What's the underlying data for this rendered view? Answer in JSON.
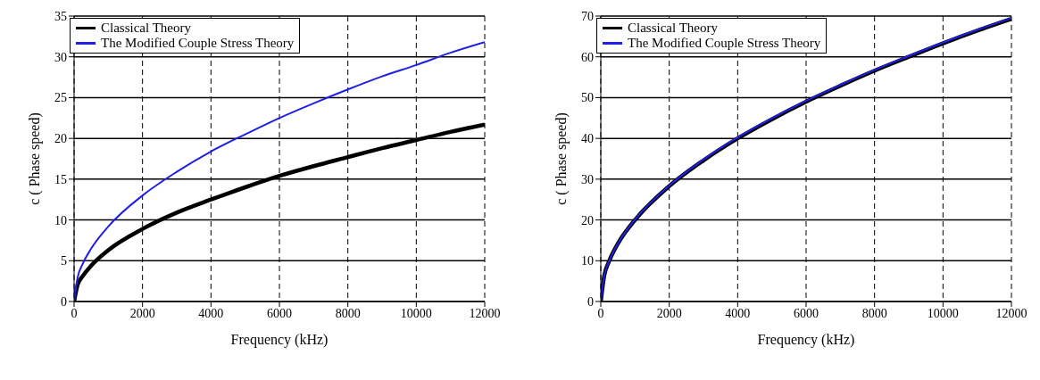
{
  "chart_data": [
    {
      "type": "line",
      "xlabel": "Frequency (kHz)",
      "ylabel": "c ( Phase speed)",
      "x": [
        0,
        100,
        250,
        500,
        1000,
        2000,
        3000,
        4000,
        5000,
        6000,
        7000,
        8000,
        9000,
        10000,
        11000,
        12000
      ],
      "xlim": [
        0,
        12000
      ],
      "xticks": [
        0,
        2000,
        4000,
        6000,
        8000,
        10000,
        12000
      ],
      "ylim": [
        0,
        35
      ],
      "yticks": [
        0,
        5,
        10,
        15,
        20,
        25,
        30,
        35
      ],
      "grid": true,
      "legend": "top left",
      "marker": "none",
      "line_style": "solid",
      "series": [
        {
          "name": "Classical Theory",
          "color": "#000000",
          "values": [
            0,
            2.0,
            3.1,
            4.4,
            6.3,
            8.9,
            10.9,
            12.5,
            14.0,
            15.4,
            16.6,
            17.7,
            18.8,
            19.8,
            20.8,
            21.7
          ]
        },
        {
          "name": "The Modified Couple Stress Theory",
          "color": "#1f1fe6",
          "values": [
            0,
            2.9,
            4.6,
            6.5,
            9.2,
            13.0,
            15.9,
            18.4,
            20.5,
            22.5,
            24.3,
            26.0,
            27.6,
            29.0,
            30.5,
            31.8
          ]
        }
      ]
    },
    {
      "type": "line",
      "xlabel": "Frequency (kHz)",
      "ylabel": "c ( Phase speed)",
      "x": [
        0,
        100,
        250,
        500,
        1000,
        2000,
        3000,
        4000,
        5000,
        6000,
        7000,
        8000,
        9000,
        10000,
        11000,
        12000
      ],
      "xlim": [
        0,
        12000
      ],
      "xticks": [
        0,
        2000,
        4000,
        6000,
        8000,
        10000,
        12000
      ],
      "ylim": [
        0,
        70
      ],
      "yticks": [
        0,
        10,
        20,
        30,
        40,
        50,
        60,
        70
      ],
      "grid": true,
      "legend": "top left",
      "marker": "none",
      "line_style": "solid",
      "series": [
        {
          "name": "Classical Theory",
          "color": "#000000",
          "values": [
            0,
            6.3,
            10.0,
            14.2,
            20.0,
            28.3,
            34.6,
            40.0,
            44.7,
            49.0,
            52.9,
            56.6,
            60.0,
            63.3,
            66.4,
            69.3
          ]
        },
        {
          "name": "The Modified Couple Stress Theory",
          "color": "#1f1fe6",
          "values": [
            0,
            6.3,
            10.0,
            14.2,
            20.1,
            28.4,
            34.8,
            40.2,
            44.9,
            49.2,
            53.1,
            56.8,
            60.2,
            63.5,
            66.6,
            69.5
          ]
        }
      ]
    }
  ]
}
